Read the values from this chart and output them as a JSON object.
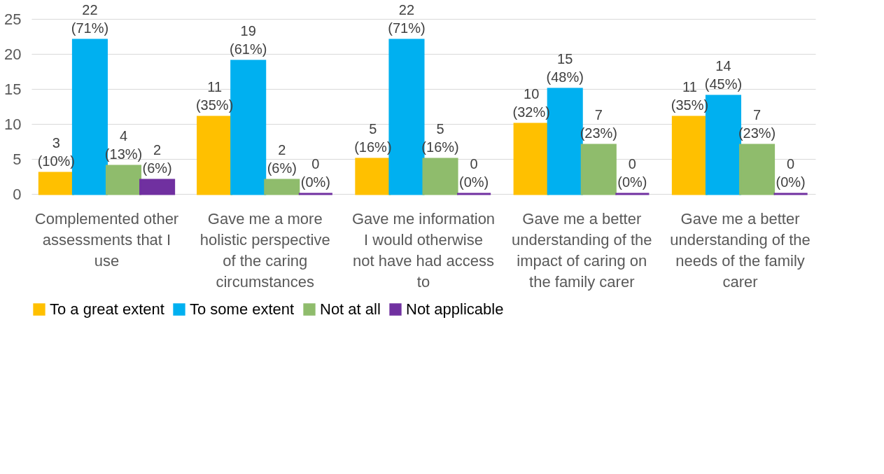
{
  "chart_data": {
    "type": "bar",
    "categories": [
      "Complemented other assessments that I use",
      "Gave me a more holistic perspective of the caring circumstances",
      "Gave me information I would otherwise not have had access to",
      "Gave me a better understanding of the impact of caring on the family carer",
      "Gave me a better understanding of the needs of the family carer"
    ],
    "series": [
      {
        "name": "To a great extent",
        "color": "#ffc000",
        "values": [
          3,
          11,
          5,
          10,
          11
        ],
        "value_labels": [
          "3 (10%)",
          "11 (35%)",
          "5 (16%)",
          "10 (32%)",
          "11 (35%)"
        ]
      },
      {
        "name": "To some extent",
        "color": "#00b0f0",
        "values": [
          22,
          19,
          22,
          15,
          14
        ],
        "value_labels": [
          "22 (71%)",
          "19 (61%)",
          "22 (71%)",
          "15 (48%)",
          "14 (45%)"
        ]
      },
      {
        "name": "Not at all",
        "color": "#8fbc6c",
        "values": [
          4,
          2,
          5,
          7,
          7
        ],
        "value_labels": [
          "4 (13%)",
          "2 (6%)",
          "5 (16%)",
          "7 (23%)",
          "7 (23%)"
        ]
      },
      {
        "name": "Not applicable",
        "color": "#7030a0",
        "values": [
          2,
          0,
          0,
          0,
          0
        ],
        "value_labels": [
          "2 (6%)",
          "0 (0%)",
          "0 (0%)",
          "0 (0%)",
          "0 (0%)"
        ]
      }
    ],
    "ylim": [
      0,
      25
    ],
    "yticks": [
      0,
      5,
      10,
      15,
      20,
      25
    ],
    "grid": "y",
    "legend": "bottom"
  }
}
